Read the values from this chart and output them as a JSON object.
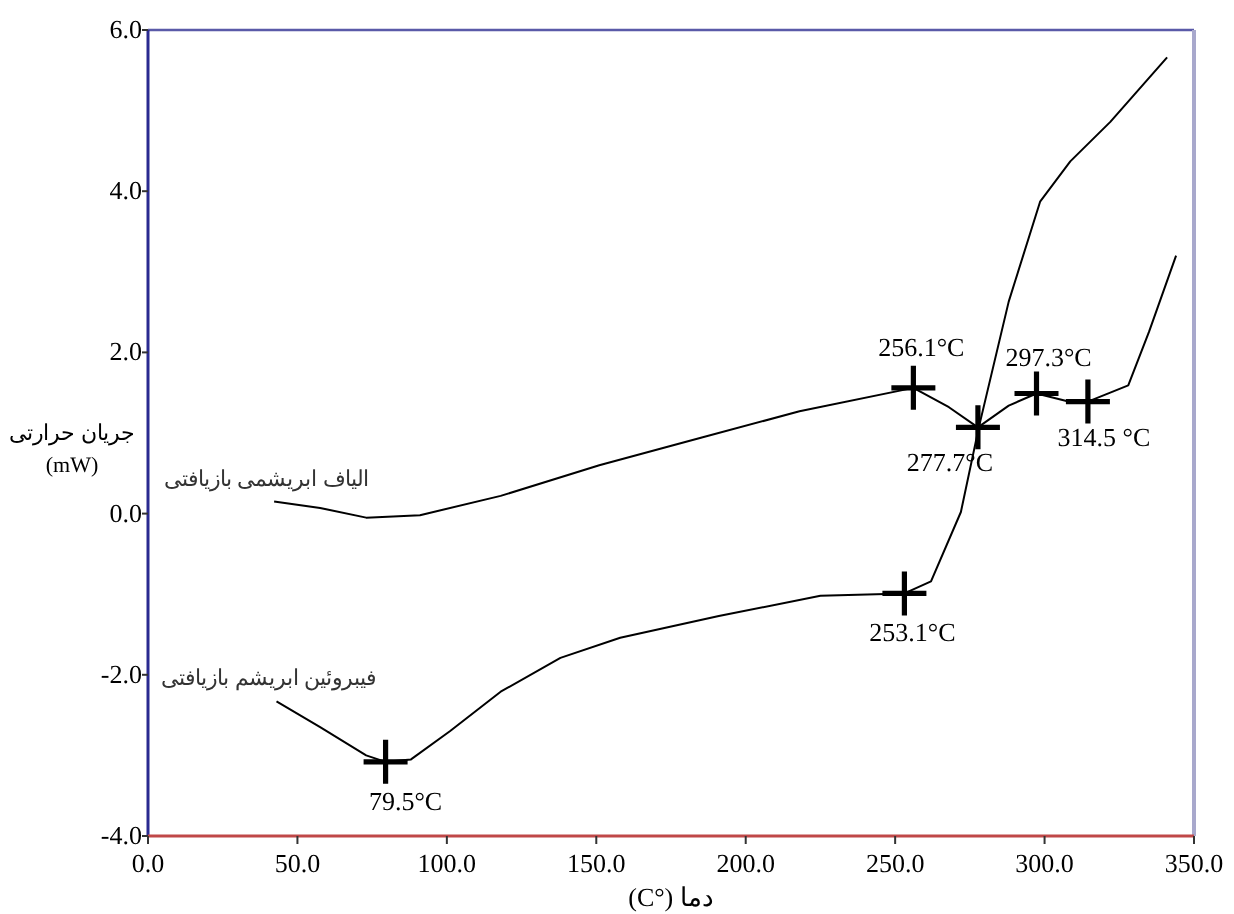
{
  "chart_data": {
    "type": "line",
    "xlabel": "دما (°C)",
    "ylabel": "جریان حرارتی\n(mW)",
    "xlim": [
      0,
      350
    ],
    "ylim": [
      -4,
      6
    ],
    "xticks": [
      {
        "value": 0,
        "label": "0.0"
      },
      {
        "value": 50,
        "label": "50.0"
      },
      {
        "value": 100,
        "label": "100.0"
      },
      {
        "value": 150,
        "label": "150.0"
      },
      {
        "value": 200,
        "label": "200.0"
      },
      {
        "value": 250,
        "label": "250.0"
      },
      {
        "value": 300,
        "label": "300.0"
      },
      {
        "value": 350,
        "label": "350.0"
      }
    ],
    "yticks": [
      {
        "value": -4,
        "label": "-4.0"
      },
      {
        "value": -2,
        "label": "-2.0"
      },
      {
        "value": 0,
        "label": "0.0"
      },
      {
        "value": 2,
        "label": "2.0"
      },
      {
        "value": 4,
        "label": "4.0"
      },
      {
        "value": 6,
        "label": "6.0"
      }
    ],
    "grid": false,
    "series": [
      {
        "name": "الیاف ابریشمی بازیافتی",
        "color": "#000000",
        "x": [
          42.2,
          57.6,
          73,
          91,
          118,
          151,
          185,
          218,
          256.1,
          268,
          277.7,
          288,
          297.3,
          308,
          314.5,
          328,
          335,
          344
        ],
        "values": [
          0.15,
          0.07,
          -0.05,
          -0.02,
          0.22,
          0.6,
          0.94,
          1.27,
          1.56,
          1.32,
          1.07,
          1.34,
          1.49,
          1.39,
          1.39,
          1.59,
          2.26,
          3.2
        ]
      },
      {
        "name": "فیبروئین ابریشم بازیافتی",
        "color": "#000000",
        "x": [
          43,
          57.6,
          73,
          79.5,
          88,
          101,
          118,
          138,
          158,
          191,
          225,
          253.1,
          262,
          272,
          278,
          288,
          298.5,
          308.6,
          322,
          341
        ],
        "values": [
          -2.33,
          -2.65,
          -3.0,
          -3.08,
          -3.05,
          -2.7,
          -2.21,
          -1.79,
          -1.54,
          -1.27,
          -1.02,
          -0.99,
          -0.84,
          0.02,
          1.07,
          2.63,
          3.87,
          4.37,
          4.86,
          5.66
        ]
      },
      {
        "type": "scatter",
        "marker": "cross",
        "color": "#000000",
        "x": [
          79.5,
          253.1,
          256.1,
          277.7,
          297.3,
          314.5
        ],
        "values": [
          -3.08,
          -0.99,
          1.56,
          1.07,
          1.49,
          1.39
        ]
      }
    ],
    "annotations": [
      {
        "text": "79.5°C",
        "x": 79.5,
        "y": -3.08
      },
      {
        "text": "253.1°C",
        "x": 253.1,
        "y": -0.99
      },
      {
        "text": "256.1°C",
        "x": 256.1,
        "y": 1.56
      },
      {
        "text": "277.7°C",
        "x": 277.7,
        "y": 1.07
      },
      {
        "text": "297.3°C",
        "x": 297.3,
        "y": 1.49
      },
      {
        "text": "314.5 °C",
        "x": 314.5,
        "y": 1.39
      }
    ]
  }
}
